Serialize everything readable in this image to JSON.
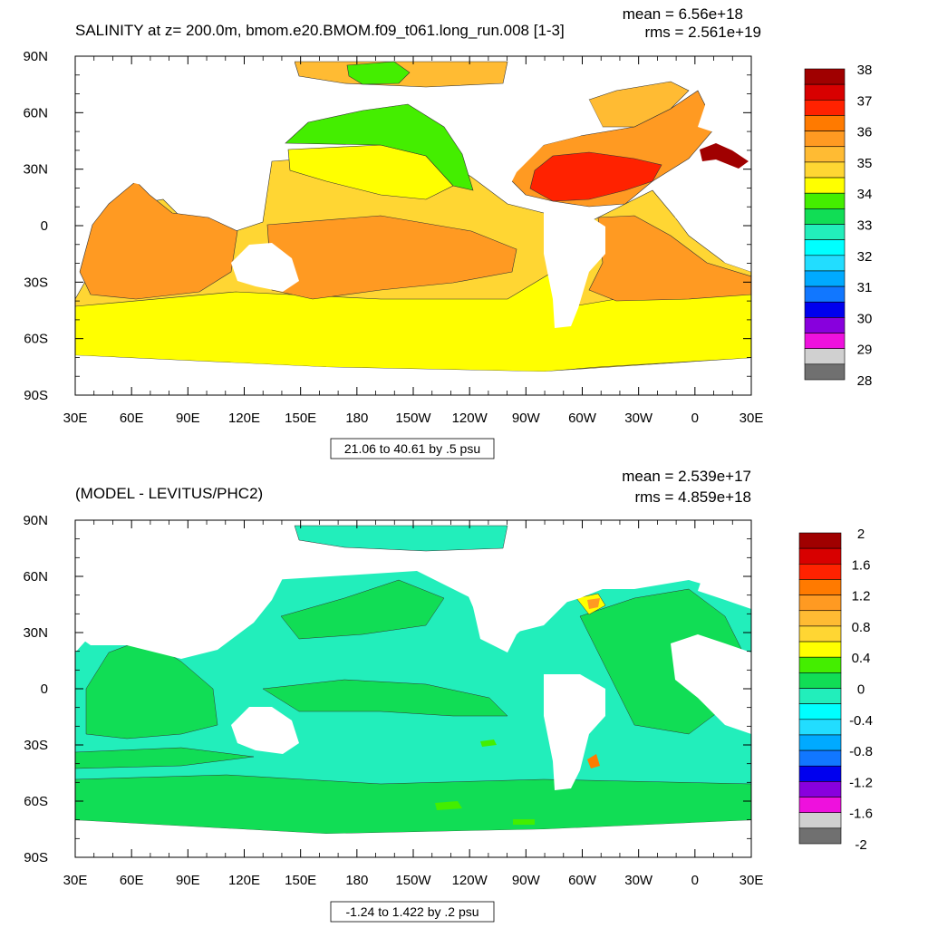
{
  "top_panel": {
    "title": "SALINITY at z= 200.0m, bmom.e20.BMOM.f09_t061.long_run.008 [1-3]",
    "mean": "mean = 6.56e+18",
    "rms": "rms = 2.561e+19",
    "info": "21.06 to 40.61 by .5 psu"
  },
  "bottom_panel": {
    "title": "(MODEL - LEVITUS/PHC2)",
    "mean": "mean = 2.539e+17",
    "rms": "rms = 4.859e+18",
    "info": "-1.24 to 1.422 by .2 psu"
  },
  "chart_data": [
    {
      "type": "heatmap",
      "title": "SALINITY at z= 200.0m, bmom.e20.BMOM.f09_t061.long_run.008 [1-3]",
      "units": "psu",
      "xlabel": "",
      "ylabel": "",
      "x_tick_labels": [
        "30E",
        "60E",
        "90E",
        "120E",
        "150E",
        "180",
        "150W",
        "120W",
        "90W",
        "60W",
        "30W",
        "0",
        "30E"
      ],
      "y_tick_labels": [
        "90N",
        "60N",
        "30N",
        "0",
        "30S",
        "60S",
        "90S"
      ],
      "colorbar_labels": [
        "38",
        "37",
        "36",
        "35",
        "34",
        "33",
        "32",
        "31",
        "30",
        "29",
        "28"
      ],
      "colorbar_colors": [
        "#a00000",
        "#d80000",
        "#ff2200",
        "#ff7a00",
        "#ff9a22",
        "#ffbb33",
        "#ffd633",
        "#ffff00",
        "#44ee00",
        "#11dd55",
        "#22eebb",
        "#00ffff",
        "#22ddff",
        "#00aaff",
        "#1177ff",
        "#0000ee",
        "#8800dd",
        "#ee11dd",
        "#d0d0d0",
        "#707070"
      ],
      "contour_interval": 0.5,
      "range": [
        21.06,
        40.61
      ],
      "mean": 6.56e+18,
      "rms": 2.561e+19
    },
    {
      "type": "heatmap",
      "title": "(MODEL - LEVITUS/PHC2)",
      "units": "psu",
      "xlabel": "",
      "ylabel": "",
      "x_tick_labels": [
        "30E",
        "60E",
        "90E",
        "120E",
        "150E",
        "180",
        "150W",
        "120W",
        "90W",
        "60W",
        "30W",
        "0",
        "30E"
      ],
      "y_tick_labels": [
        "90N",
        "60N",
        "30N",
        "0",
        "30S",
        "60S",
        "90S"
      ],
      "colorbar_labels": [
        "2",
        "1.6",
        "1.2",
        "0.8",
        "0.4",
        "0",
        "-0.4",
        "-0.8",
        "-1.2",
        "-1.6",
        "-2"
      ],
      "colorbar_colors": [
        "#a00000",
        "#d80000",
        "#ff2200",
        "#ff7a00",
        "#ff9a22",
        "#ffbb33",
        "#ffd633",
        "#ffff00",
        "#44ee00",
        "#11dd55",
        "#22eebb",
        "#00ffff",
        "#22ddff",
        "#00aaff",
        "#1177ff",
        "#0000ee",
        "#8800dd",
        "#ee11dd",
        "#d0d0d0",
        "#707070"
      ],
      "contour_interval": 0.2,
      "range": [
        -1.24,
        1.422
      ],
      "mean": 2.539e+17,
      "rms": 4.859e+18
    }
  ]
}
